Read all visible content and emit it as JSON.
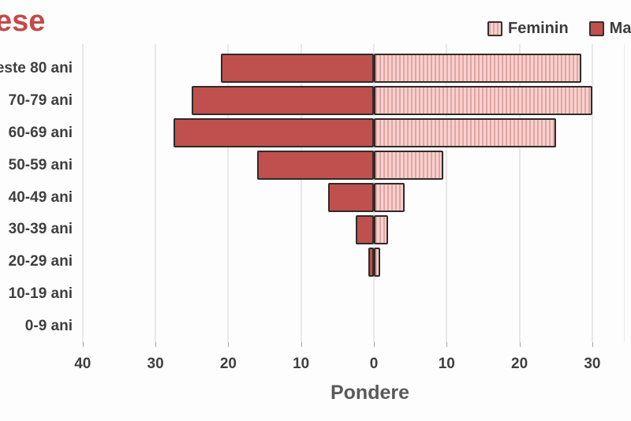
{
  "title": {
    "text": "ese",
    "color": "#c34a4b"
  },
  "legend": {
    "items": [
      {
        "label": "Feminin",
        "swatch": "striped-pink"
      },
      {
        "label": "Ma",
        "swatch": "solid-red"
      }
    ]
  },
  "chart_data": {
    "type": "bar",
    "subtype": "population-pyramid",
    "orientation": "horizontal",
    "title_fragment": "ese",
    "categories": [
      "este 80 ani",
      "70-79 ani",
      "60-69 ani",
      "50-59 ani",
      "40-49 ani",
      "30-39 ani",
      "20-29 ani",
      "10-19 ani",
      "0-9 ani"
    ],
    "series": [
      {
        "name": "Ma",
        "side": "left",
        "values": [
          21,
          25,
          27.5,
          16,
          6.3,
          2.5,
          0.8,
          0,
          0
        ]
      },
      {
        "name": "Feminin",
        "side": "right",
        "values": [
          28.5,
          30,
          25,
          9.5,
          4.2,
          2,
          0.9,
          0,
          0
        ]
      }
    ],
    "xlabel": "Pondere",
    "x_ticks": [
      "40",
      "30",
      "20",
      "10",
      "0",
      "10",
      "20",
      "30"
    ],
    "x_tick_values": [
      -40,
      -30,
      -20,
      -10,
      0,
      10,
      20,
      30
    ],
    "xlim": [
      -40,
      35.5
    ],
    "grid": true,
    "legend_position": "top-right",
    "colors": {
      "masculin_fill": "#c0504d",
      "feminin_light": "#f6d2d0",
      "feminin_stripe": "#e5a3a0",
      "bar_border": "#2f2b2a",
      "gridline": "#eae7e7",
      "tick_text": "#3f3f3f",
      "axis_title_text": "#595959",
      "title_text": "#c34a4b"
    }
  }
}
